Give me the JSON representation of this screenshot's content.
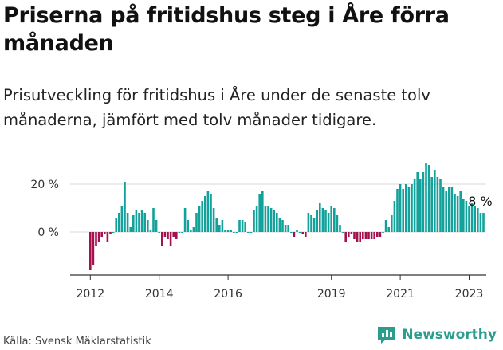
{
  "header": {
    "title": "Priserna på fritidshus steg i Åre förra månaden",
    "subtitle": "Prisutveckling för fritidshus i Åre under de senaste tolv månaderna, jämfört med tolv månader tidigare."
  },
  "footer": {
    "source": "Källa: Svensk Mäklarstatistik",
    "brand": "Newsworthy"
  },
  "colors": {
    "positive": "#13a19b",
    "negative": "#a3124e",
    "gridline": "#d9d9d9",
    "axis": "#333333",
    "brand": "#2a9d8f"
  },
  "chart_data": {
    "type": "bar",
    "title": "Priserna på fritidshus steg i Åre förra månaden",
    "subtitle": "Prisutveckling för fritidshus i Åre under de senaste tolv månaderna, jämfört med tolv månader tidigare.",
    "xlabel": "",
    "ylabel": "",
    "unit": "%",
    "start": "2012-01",
    "frequency": "monthly",
    "ylim": [
      -17,
      32
    ],
    "yticks": [
      0,
      20
    ],
    "ytick_labels": [
      "0 %",
      "20 %"
    ],
    "xticks": [
      "2012",
      "2014",
      "2016",
      "2019",
      "2021",
      "2023"
    ],
    "annotation": "8 %",
    "values": [
      -16,
      -14,
      -6,
      -4,
      -2,
      -1,
      -4,
      -1,
      0,
      6,
      8,
      11,
      21,
      8,
      2,
      7,
      9,
      8,
      9,
      8,
      5,
      1,
      10,
      5,
      0,
      -6,
      -2,
      -3,
      -6,
      -2,
      -3,
      0,
      0,
      10,
      5,
      1,
      2,
      8,
      11,
      13,
      15,
      17,
      16,
      10,
      6,
      3,
      5,
      1,
      1,
      1,
      0,
      0,
      5,
      5,
      4,
      0,
      0,
      9,
      11,
      16,
      17,
      11,
      11,
      10,
      9,
      8,
      6,
      5,
      3,
      3,
      0,
      -2,
      1,
      0,
      -1,
      -2,
      8,
      7,
      6,
      9,
      12,
      10,
      9,
      8,
      11,
      10,
      7,
      3,
      0,
      -4,
      -2,
      -1,
      -3,
      -4,
      -4,
      -3,
      -3,
      -3,
      -3,
      -3,
      -2,
      -2,
      0,
      5,
      2,
      7,
      13,
      18,
      20,
      18,
      20,
      19,
      20,
      22,
      25,
      22,
      25,
      29,
      28,
      23,
      26,
      23,
      22,
      19,
      17,
      19,
      19,
      16,
      15,
      17,
      14,
      13,
      11,
      12,
      11,
      10,
      8,
      8
    ]
  }
}
